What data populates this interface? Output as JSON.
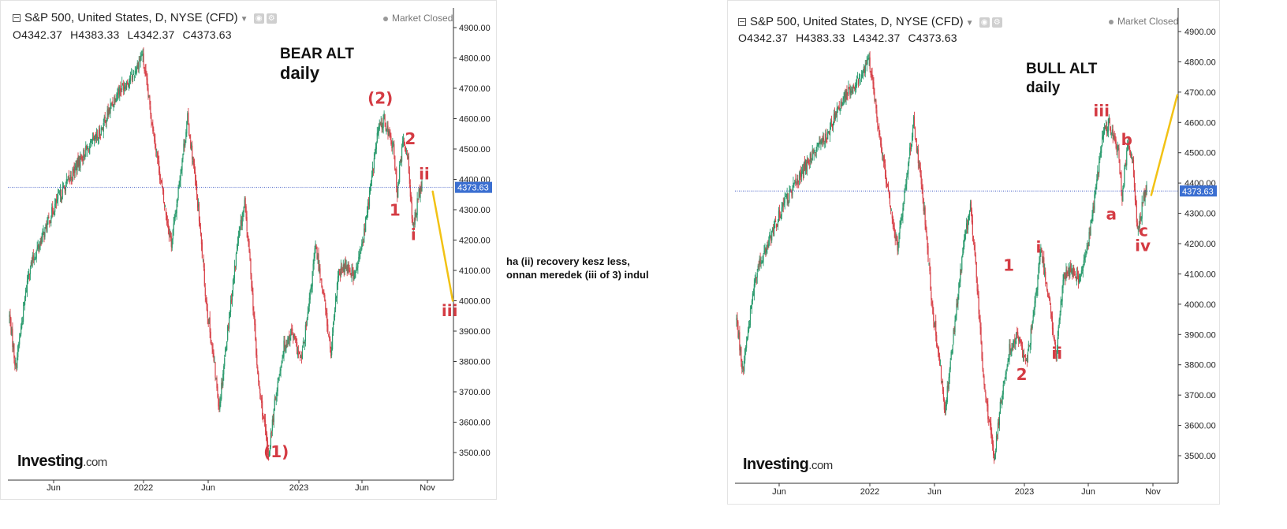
{
  "header": {
    "symbol": "S&P 500, United States, D, NYSE (CFD)",
    "status": "Market Closed",
    "ohlc": {
      "o": "O4342.37",
      "h": "H4383.33",
      "l": "L4342.37",
      "c": "C4373.63"
    }
  },
  "brand": {
    "name": "Investing",
    "domain": ".com"
  },
  "note": {
    "line1": "ha (ii) recovery kesz less,",
    "line2": "onnan meredek (iii of 3) indul"
  },
  "colors": {
    "up": "#2b9b6e",
    "down": "#d8434a",
    "wave_label": "#d43b43",
    "projection": "#f2c214",
    "price_line": "#3b57c4",
    "price_tag": "#3b6fd1"
  },
  "chart_data": [
    {
      "type": "candlestick",
      "title": "BEAR ALT",
      "subtitle": "daily",
      "ylim": [
        3430,
        4950
      ],
      "y_ticks": [
        "4900.00",
        "4800.00",
        "4700.00",
        "4600.00",
        "4500.00",
        "4400.00",
        "4300.00",
        "4200.00",
        "4100.00",
        "4000.00",
        "3900.00",
        "3800.00",
        "3700.00",
        "3600.00",
        "3500.00"
      ],
      "x_ticks": [
        "Jun",
        "2022",
        "Jun",
        "2023",
        "Jun",
        "Nov"
      ],
      "last_price": "4373.63",
      "path": [
        [
          0,
          3950
        ],
        [
          8,
          3780
        ],
        [
          25,
          4100
        ],
        [
          60,
          4320
        ],
        [
          95,
          4480
        ],
        [
          115,
          4540
        ],
        [
          140,
          4690
        ],
        [
          160,
          4740
        ],
        [
          172,
          4815
        ],
        [
          182,
          4640
        ],
        [
          192,
          4470
        ],
        [
          200,
          4330
        ],
        [
          210,
          4190
        ],
        [
          216,
          4300
        ],
        [
          223,
          4450
        ],
        [
          231,
          4600
        ],
        [
          237,
          4480
        ],
        [
          245,
          4300
        ],
        [
          255,
          4000
        ],
        [
          265,
          3800
        ],
        [
          272,
          3650
        ],
        [
          285,
          3950
        ],
        [
          296,
          4190
        ],
        [
          305,
          4320
        ],
        [
          313,
          4100
        ],
        [
          322,
          3750
        ],
        [
          330,
          3600
        ],
        [
          336,
          3490
        ],
        [
          346,
          3700
        ],
        [
          356,
          3850
        ],
        [
          366,
          3900
        ],
        [
          378,
          3800
        ],
        [
          387,
          3950
        ],
        [
          397,
          4180
        ],
        [
          408,
          4010
        ],
        [
          417,
          3820
        ],
        [
          426,
          4080
        ],
        [
          437,
          4120
        ],
        [
          448,
          4080
        ],
        [
          458,
          4190
        ],
        [
          467,
          4350
        ],
        [
          478,
          4560
        ],
        [
          486,
          4600
        ],
        [
          498,
          4500
        ],
        [
          503,
          4360
        ],
        [
          510,
          4520
        ],
        [
          517,
          4480
        ],
        [
          523,
          4230
        ],
        [
          530,
          4340
        ],
        [
          535,
          4380
        ]
      ],
      "annotations": [
        {
          "text": "(1)",
          "x": 346,
          "y": 3485
        },
        {
          "text": "(2)",
          "x": 481,
          "y": 4650
        },
        {
          "text": "1",
          "x": 500,
          "y": 4280
        },
        {
          "text": "2",
          "x": 520,
          "y": 4515
        },
        {
          "text": "i",
          "x": 524,
          "y": 4200
        },
        {
          "text": "ii",
          "x": 538,
          "y": 4400
        },
        {
          "text": "iii",
          "x": 571,
          "y": 3950
        }
      ],
      "projection": [
        {
          "x": 549,
          "y": 4360
        },
        {
          "x": 575,
          "y": 4000
        }
      ]
    },
    {
      "type": "candlestick",
      "title": "BULL ALT",
      "subtitle": "daily",
      "ylim": [
        3430,
        4950
      ],
      "y_ticks": [
        "4900.00",
        "4800.00",
        "4700.00",
        "4600.00",
        "4500.00",
        "4400.00",
        "4300.00",
        "4200.00",
        "4100.00",
        "4000.00",
        "3900.00",
        "3800.00",
        "3700.00",
        "3600.00",
        "3500.00"
      ],
      "x_ticks": [
        "Jun",
        "2022",
        "Jun",
        "2023",
        "Jun",
        "Nov"
      ],
      "last_price": "4373.63",
      "path": [
        [
          0,
          3950
        ],
        [
          8,
          3780
        ],
        [
          25,
          4100
        ],
        [
          60,
          4320
        ],
        [
          95,
          4480
        ],
        [
          115,
          4540
        ],
        [
          140,
          4690
        ],
        [
          160,
          4740
        ],
        [
          172,
          4815
        ],
        [
          182,
          4640
        ],
        [
          192,
          4470
        ],
        [
          200,
          4330
        ],
        [
          210,
          4190
        ],
        [
          216,
          4300
        ],
        [
          223,
          4450
        ],
        [
          231,
          4600
        ],
        [
          237,
          4480
        ],
        [
          245,
          4300
        ],
        [
          255,
          4000
        ],
        [
          265,
          3800
        ],
        [
          272,
          3650
        ],
        [
          285,
          3950
        ],
        [
          296,
          4190
        ],
        [
          305,
          4320
        ],
        [
          313,
          4100
        ],
        [
          322,
          3750
        ],
        [
          330,
          3600
        ],
        [
          336,
          3490
        ],
        [
          346,
          3700
        ],
        [
          356,
          3850
        ],
        [
          366,
          3900
        ],
        [
          378,
          3800
        ],
        [
          387,
          3950
        ],
        [
          397,
          4180
        ],
        [
          408,
          4010
        ],
        [
          417,
          3820
        ],
        [
          426,
          4080
        ],
        [
          437,
          4120
        ],
        [
          448,
          4080
        ],
        [
          458,
          4190
        ],
        [
          467,
          4350
        ],
        [
          478,
          4560
        ],
        [
          486,
          4600
        ],
        [
          498,
          4500
        ],
        [
          503,
          4360
        ],
        [
          510,
          4520
        ],
        [
          517,
          4480
        ],
        [
          523,
          4230
        ],
        [
          530,
          4340
        ],
        [
          535,
          4380
        ]
      ],
      "annotations": [
        {
          "text": "1",
          "x": 355,
          "y": 4110
        },
        {
          "text": "2",
          "x": 372,
          "y": 3750
        },
        {
          "text": "i",
          "x": 394,
          "y": 4170
        },
        {
          "text": "ii",
          "x": 418,
          "y": 3820
        },
        {
          "text": "iii",
          "x": 476,
          "y": 4620
        },
        {
          "text": "b",
          "x": 509,
          "y": 4525
        },
        {
          "text": "a",
          "x": 489,
          "y": 4280
        },
        {
          "text": "c",
          "x": 531,
          "y": 4225
        },
        {
          "text": "iv",
          "x": 530,
          "y": 4175
        }
      ],
      "projection": [
        {
          "x": 541,
          "y": 4360
        },
        {
          "x": 575,
          "y": 4690
        }
      ]
    }
  ]
}
